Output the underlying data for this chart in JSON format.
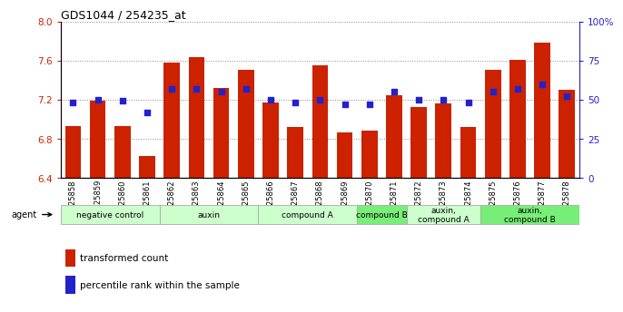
{
  "title": "GDS1044 / 254235_at",
  "samples": [
    "GSM25858",
    "GSM25859",
    "GSM25860",
    "GSM25861",
    "GSM25862",
    "GSM25863",
    "GSM25864",
    "GSM25865",
    "GSM25866",
    "GSM25867",
    "GSM25868",
    "GSM25869",
    "GSM25870",
    "GSM25871",
    "GSM25872",
    "GSM25873",
    "GSM25874",
    "GSM25875",
    "GSM25876",
    "GSM25877",
    "GSM25878"
  ],
  "bar_values": [
    6.93,
    7.19,
    6.93,
    6.62,
    7.58,
    7.63,
    7.32,
    7.5,
    7.17,
    6.92,
    7.55,
    6.86,
    6.88,
    7.24,
    7.12,
    7.16,
    6.92,
    7.5,
    7.61,
    7.78,
    7.3
  ],
  "dot_values": [
    48,
    50,
    49,
    42,
    57,
    57,
    55,
    57,
    50,
    48,
    50,
    47,
    47,
    55,
    50,
    50,
    48,
    55,
    57,
    60,
    52
  ],
  "ymin": 6.4,
  "ymax": 8.0,
  "yticks": [
    6.4,
    6.8,
    7.2,
    7.6,
    8.0
  ],
  "bar_color": "#cc2200",
  "dot_color": "#2222cc",
  "grid_color": "#888888",
  "agent_groups": [
    {
      "label": "negative control",
      "start": 0,
      "end": 4,
      "color": "#ccffcc",
      "dark": false
    },
    {
      "label": "auxin",
      "start": 4,
      "end": 8,
      "color": "#ccffcc",
      "dark": false
    },
    {
      "label": "compound A",
      "start": 8,
      "end": 12,
      "color": "#ccffcc",
      "dark": false
    },
    {
      "label": "compound B",
      "start": 12,
      "end": 14,
      "color": "#77ee77",
      "dark": true
    },
    {
      "label": "auxin,\ncompound A",
      "start": 14,
      "end": 17,
      "color": "#ccffcc",
      "dark": false
    },
    {
      "label": "auxin,\ncompound B",
      "start": 17,
      "end": 21,
      "color": "#77ee77",
      "dark": true
    }
  ],
  "legend_bar_label": "transformed count",
  "legend_dot_label": "percentile rank within the sample",
  "right_yticks": [
    0,
    25,
    50,
    75,
    100
  ],
  "right_yticklabels": [
    "0",
    "25",
    "50",
    "75",
    "100%"
  ]
}
